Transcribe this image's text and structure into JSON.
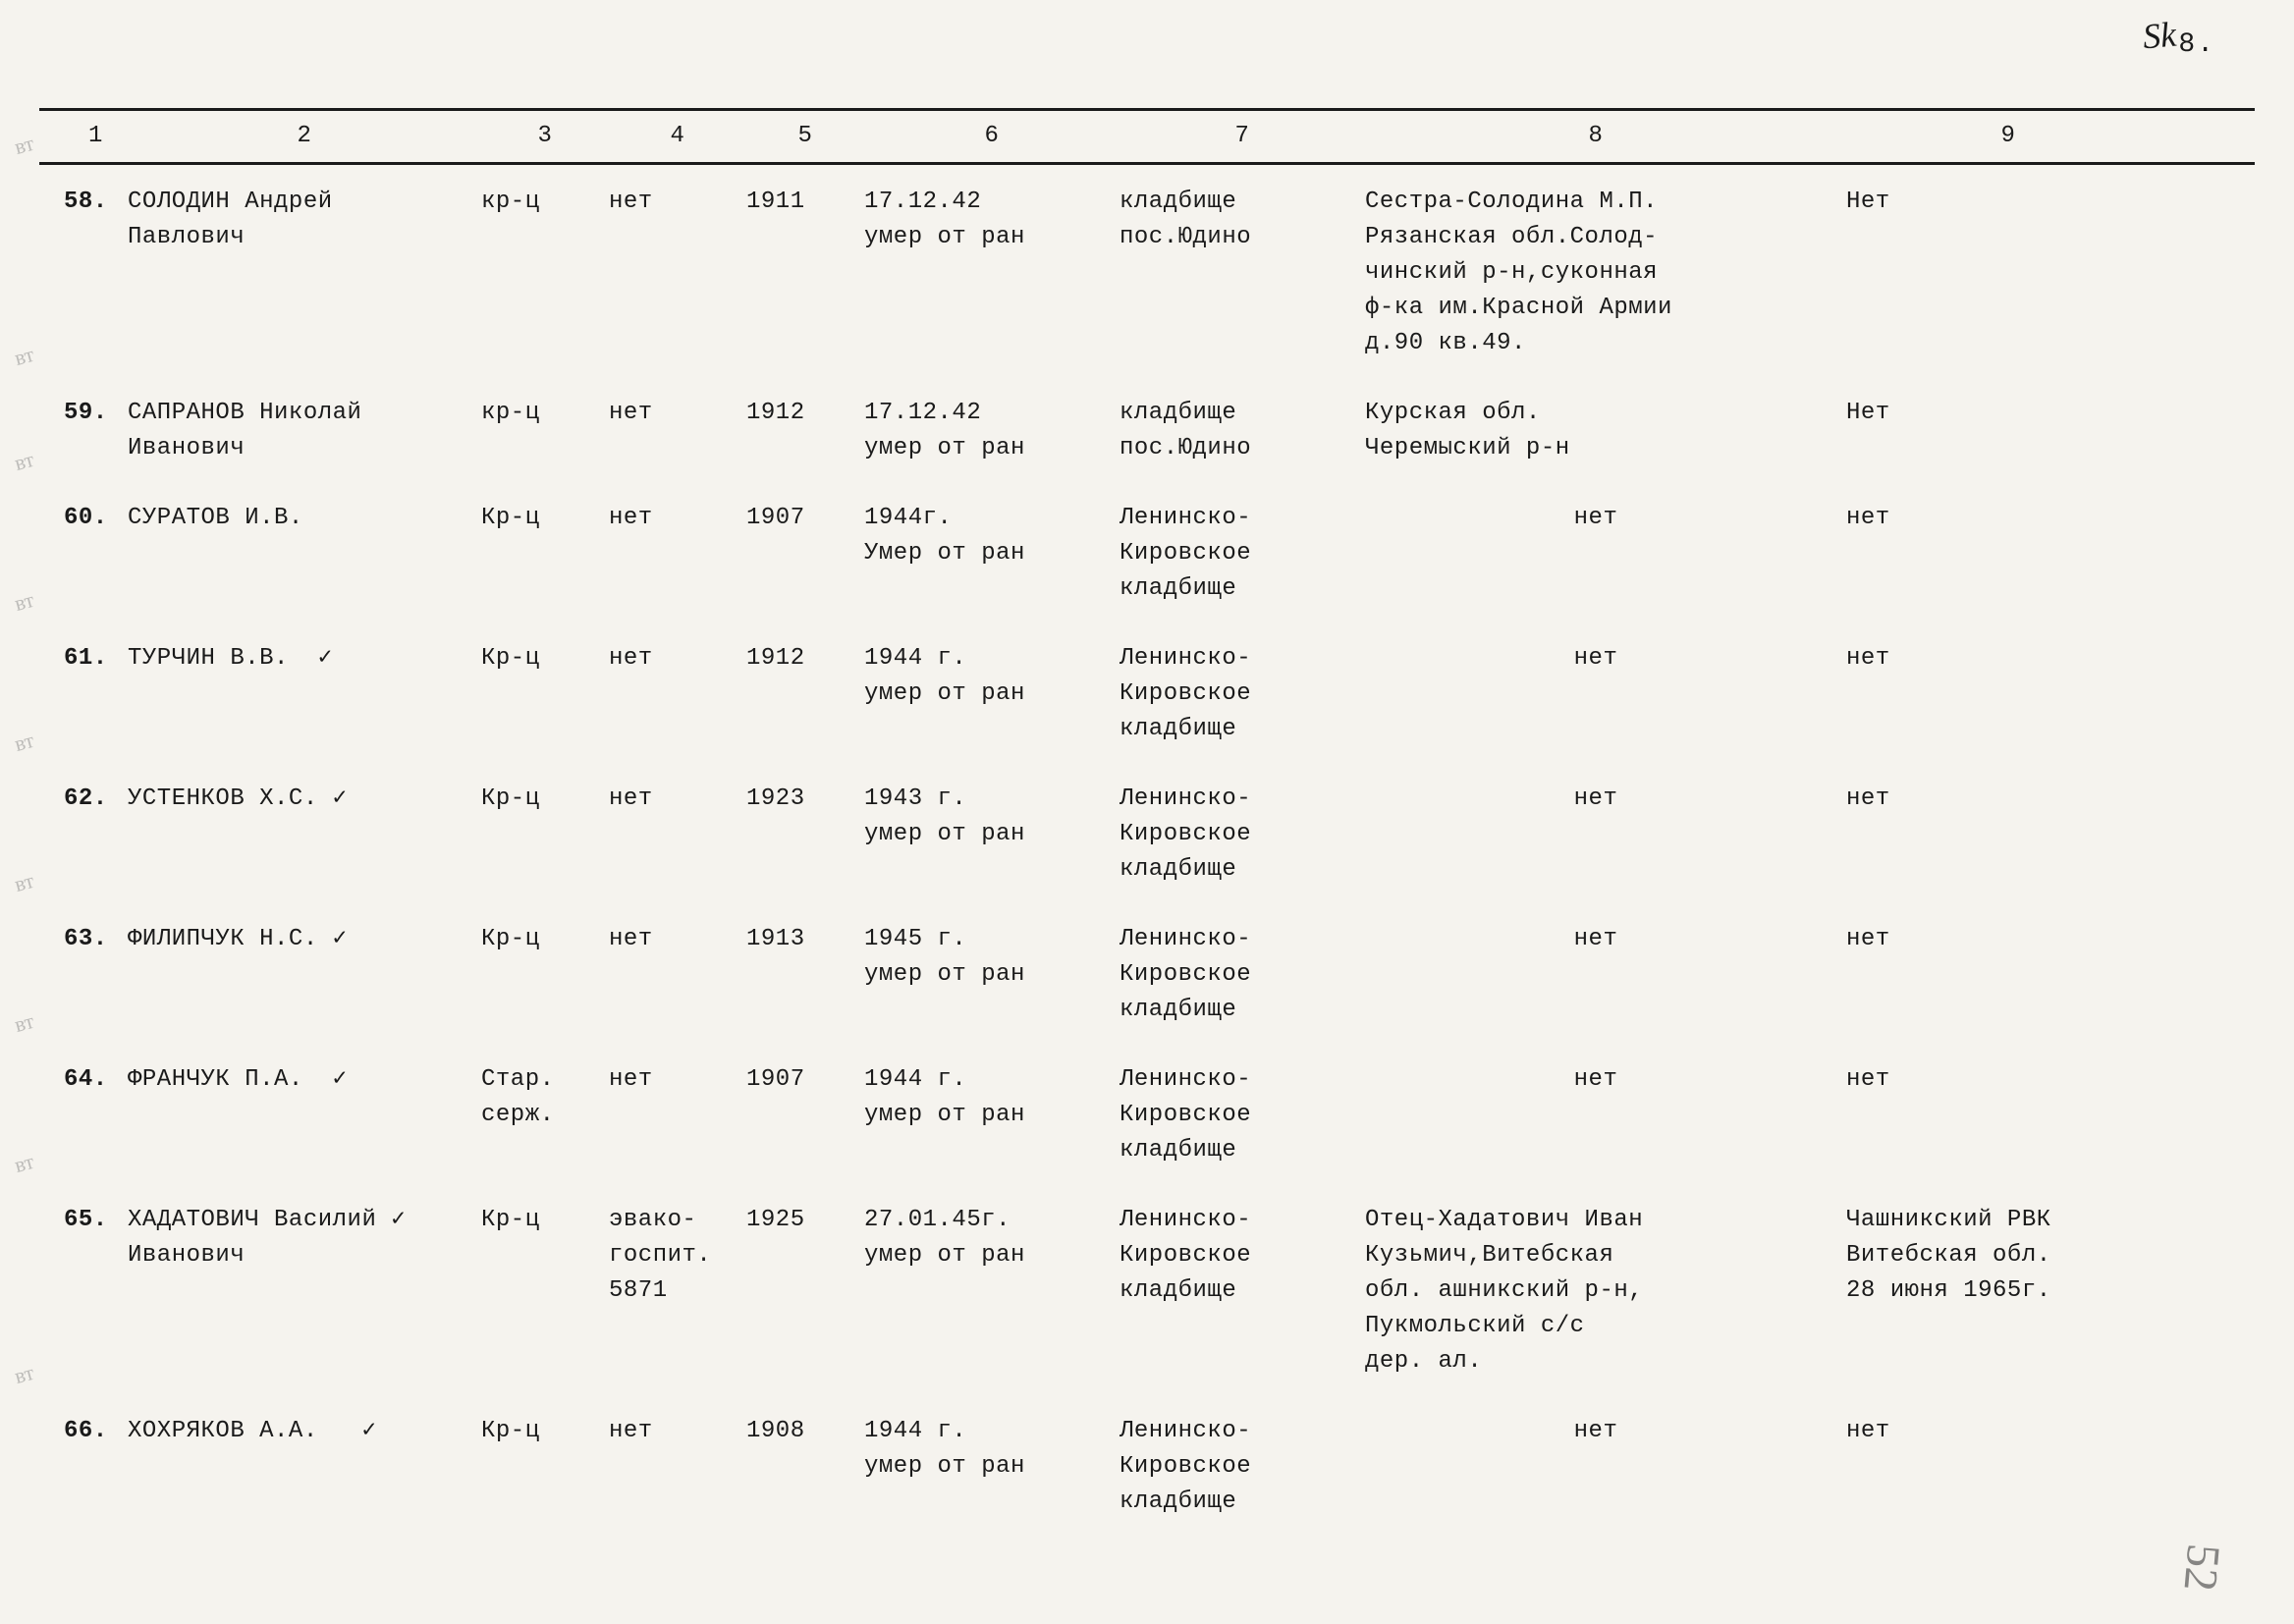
{
  "page_number": "8.",
  "signature": "Sk",
  "corner": "52",
  "columns": [
    "1",
    "2",
    "3",
    "4",
    "5",
    "6",
    "7",
    "8",
    "9"
  ],
  "rows": [
    {
      "num": "58.",
      "name": "СОЛОДИН Андрей\nПавлович",
      "rank": "кр-ц",
      "party": "нет",
      "year": "1911",
      "death": "17.12.42\nумер от ран",
      "burial": "кладбище\nпос.Юдино",
      "relative": "Сестра-Солодина М.П.\nРязанская обл.Солод-\nчинский р-н,суконная\nф-ка им.Красной Армии\nд.90 кв.49.",
      "note": "Нет"
    },
    {
      "num": "59.",
      "name": "САПРАНОВ Николай\nИванович",
      "rank": "кр-ц",
      "party": "нет",
      "year": "1912",
      "death": "17.12.42\nумер от ран",
      "burial": "кладбище\nпос.Юдино",
      "relative": "Курская обл.\nЧеремыский р-н",
      "note": "Нет"
    },
    {
      "num": "60.",
      "name": "СУРАТОВ И.В.",
      "rank": "Кр-ц",
      "party": "нет",
      "year": "1907",
      "death": "1944г.\nУмер от ран",
      "burial": "Ленинско-\nКировское\nкладбище",
      "relative": "нет",
      "note": "нет"
    },
    {
      "num": "61.",
      "name": "ТУРЧИН В.В.  ✓",
      "rank": "Кр-ц",
      "party": "нет",
      "year": "1912",
      "death": "1944 г.\nумер от ран",
      "burial": "Ленинско-\nКировское\nкладбище",
      "relative": "нет",
      "note": "нет"
    },
    {
      "num": "62.",
      "name": "УСТЕНКОВ Х.С. ✓",
      "rank": "Кр-ц",
      "party": "нет",
      "year": "1923",
      "death": "1943 г.\nумер от ран",
      "burial": "Ленинско-\nКировское\nкладбище",
      "relative": "нет",
      "note": "нет"
    },
    {
      "num": "63.",
      "name": "ФИЛИПЧУК Н.С. ✓",
      "rank": "Кр-ц",
      "party": "нет",
      "year": "1913",
      "death": "1945 г.\nумер от ран",
      "burial": "Ленинско-\nКировское\nкладбище",
      "relative": "нет",
      "note": "нет"
    },
    {
      "num": "64.",
      "name": "ФРАНЧУК П.А.  ✓",
      "rank": "Стар.\nсерж.",
      "party": "нет",
      "year": "1907",
      "death": "1944 г.\nумер от ран",
      "burial": "Ленинско-\nКировское\nкладбище",
      "relative": "нет",
      "note": "нет"
    },
    {
      "num": "65.",
      "name": "ХАДАТОВИЧ Василий ✓\nИванович",
      "rank": "Кр-ц",
      "party": "эвако-\nгоспит.\n5871",
      "year": "1925",
      "death": "27.01.45г.\nумер от ран",
      "burial": "Ленинско-\nКировское\nкладбище",
      "relative": "Отец-Хадатович Иван\nКузьмич,Витебская\nобл. ашникский р-н,\nПукмольский с/с\nдер. ал.",
      "note": "Чашникский РВК\nВитебская обл.\n28 июня 1965г."
    },
    {
      "num": "66.",
      "name": "ХОХРЯКОВ А.А.   ✓",
      "rank": "Кр-ц",
      "party": "нет",
      "year": "1908",
      "death": "1944 г.\nумер от ран",
      "burial": "Ленинско-\nКировское\nкладбище",
      "relative": "нет",
      "note": "нет"
    }
  ],
  "pencil_marks": [
    "вт",
    "вт",
    "вт",
    "вт",
    "вт",
    "вт",
    "вт",
    "вт",
    "вт"
  ]
}
